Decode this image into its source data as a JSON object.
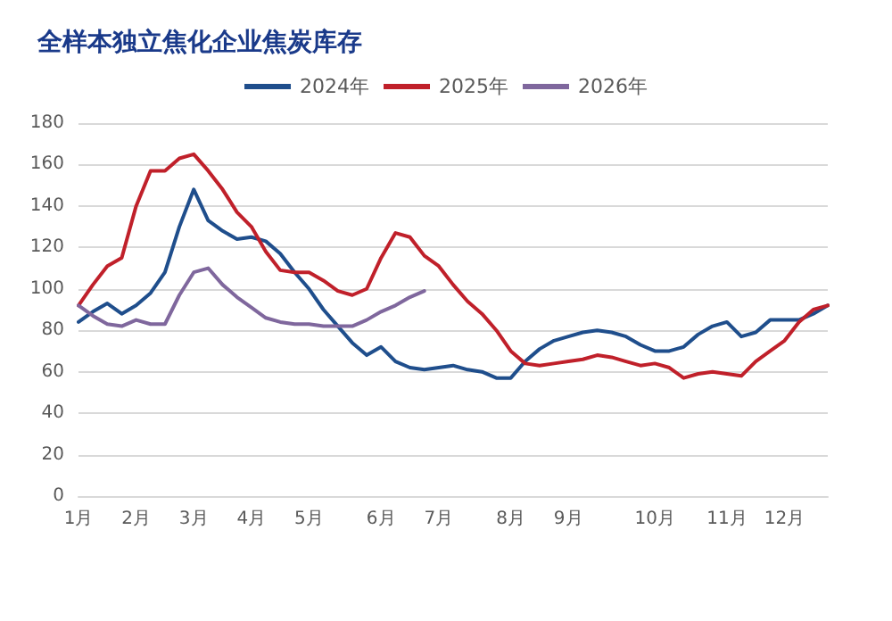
{
  "chart_data": {
    "type": "line",
    "title": "全样本独立焦化企业焦炭库存",
    "categories": [
      "1月",
      null,
      null,
      null,
      "2月",
      null,
      null,
      null,
      "3月",
      null,
      null,
      null,
      "4月",
      null,
      null,
      null,
      "5月",
      null,
      null,
      null,
      null,
      "6月",
      null,
      null,
      null,
      "7月",
      null,
      null,
      null,
      null,
      "8月",
      null,
      null,
      null,
      "9月",
      null,
      null,
      null,
      null,
      null,
      "10月",
      null,
      null,
      null,
      null,
      "11月",
      null,
      null,
      null,
      "12月",
      null,
      null,
      null
    ],
    "series": [
      {
        "name": "2024年",
        "color": "#1f4e8c",
        "values": [
          84,
          89,
          93,
          88,
          92,
          98,
          108,
          130,
          148,
          133,
          128,
          124,
          125,
          123,
          117,
          108,
          100,
          90,
          82,
          74,
          68,
          72,
          65,
          62,
          61,
          62,
          63,
          61,
          60,
          57,
          57,
          65,
          71,
          75,
          77,
          79,
          80,
          79,
          77,
          73,
          70,
          70,
          72,
          78,
          82,
          84,
          77,
          79,
          85,
          85,
          85,
          88,
          92
        ]
      },
      {
        "name": "2025年",
        "color": "#c0202a",
        "values": [
          92,
          102,
          111,
          115,
          140,
          157,
          157,
          163,
          165,
          157,
          148,
          137,
          130,
          118,
          109,
          108,
          108,
          104,
          99,
          97,
          100,
          115,
          127,
          125,
          116,
          111,
          102,
          94,
          88,
          80,
          70,
          64,
          63,
          64,
          65,
          66,
          68,
          67,
          65,
          63,
          64,
          62,
          57,
          59,
          60,
          59,
          58,
          65,
          70,
          75,
          84,
          90,
          92
        ]
      },
      {
        "name": "2026年",
        "color": "#7f679d",
        "values": [
          92,
          87,
          83,
          82,
          85,
          83,
          83,
          97,
          108,
          110,
          102,
          96,
          91,
          86,
          84,
          83,
          83,
          82,
          82,
          82,
          85,
          89,
          92,
          96,
          99,
          null,
          null,
          null,
          null,
          null,
          null,
          null,
          null,
          null,
          null,
          null,
          null,
          null,
          null,
          null,
          null,
          null,
          null,
          null,
          null,
          null,
          null,
          null,
          null,
          null,
          null,
          null,
          null
        ]
      }
    ],
    "ylim": [
      0,
      180
    ],
    "yticks": [
      0,
      20,
      40,
      60,
      80,
      100,
      120,
      140,
      160,
      180
    ],
    "grid": "y",
    "legend": "top",
    "marker": "none",
    "line_style": "solid"
  }
}
